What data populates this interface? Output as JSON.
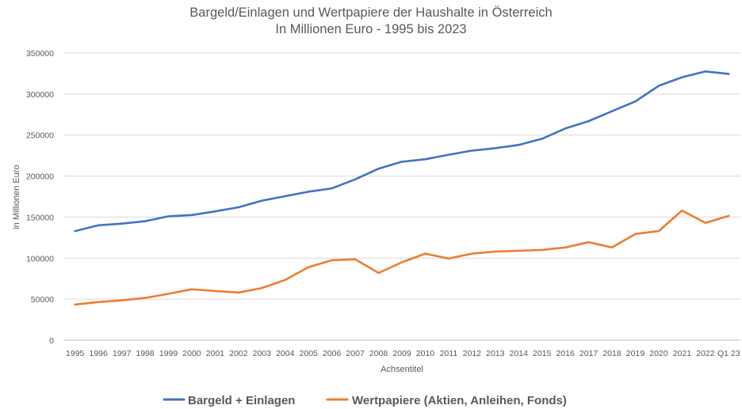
{
  "chart_data": {
    "type": "line",
    "title": "Bargeld/Einlagen und Wertpapiere der Haushalte in Österreich",
    "subtitle": "In Millionen Euro - 1995 bis 2023",
    "xlabel": "Achsentitel",
    "ylabel": "in Millionen Euro",
    "ylim": [
      0,
      350000
    ],
    "yticks": [
      "0",
      "50000",
      "100000",
      "150000",
      "200000",
      "250000",
      "300000",
      "350000"
    ],
    "grid": true,
    "legend_position": "bottom",
    "categories": [
      "1995",
      "1996",
      "1997",
      "1998",
      "1999",
      "2000",
      "2001",
      "2002",
      "2003",
      "2004",
      "2005",
      "2006",
      "2007",
      "2008",
      "2009",
      "2010",
      "2011",
      "2012",
      "2013",
      "2014",
      "2015",
      "2016",
      "2017",
      "2018",
      "2019",
      "2020",
      "2021",
      "2022",
      "Q1 23"
    ],
    "series": [
      {
        "name": "Bargeld + Einlagen",
        "color": "#4472c4",
        "values": [
          133000,
          140000,
          142000,
          145000,
          151000,
          152500,
          157000,
          162000,
          170000,
          175500,
          181000,
          185000,
          196000,
          209000,
          217500,
          220500,
          226000,
          231000,
          234000,
          238000,
          245500,
          258000,
          267000,
          279000,
          291000,
          310000,
          320500,
          327500,
          324500
        ]
      },
      {
        "name": "Wertpapiere (Aktien, Anleihen, Fonds)",
        "color": "#ed7d31",
        "values": [
          43500,
          46500,
          48500,
          51500,
          56500,
          62000,
          60000,
          58000,
          63500,
          73500,
          89000,
          97500,
          98500,
          82000,
          95000,
          105500,
          99500,
          105500,
          108000,
          109000,
          110000,
          113000,
          119500,
          113000,
          129500,
          133000,
          158000,
          143000,
          151500
        ]
      }
    ]
  }
}
